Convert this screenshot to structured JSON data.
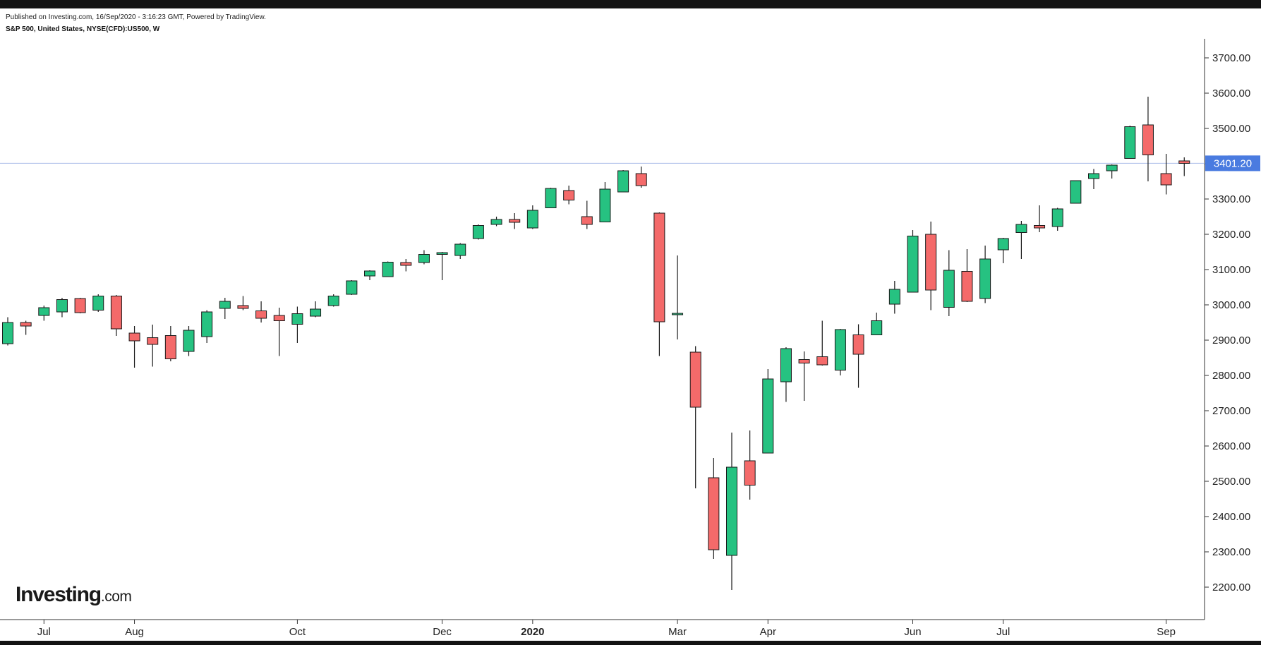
{
  "header": {
    "published": "Published on Investing.com, 16/Sep/2020 - 3:16:23 GMT, Powered by TradingView.",
    "symbol": "S&P 500, United States, NYSE(CFD):US500, W"
  },
  "logo": {
    "brand": "Investing",
    "domain": ".com"
  },
  "colors": {
    "up": "#26c281",
    "down": "#f46a6a",
    "outline": "#1a1a1a",
    "price_line": "#a9bce8",
    "price_label_bg": "#4a7be0",
    "axis": "#333333"
  },
  "chart_data": {
    "type": "candlestick",
    "title": "S&P 500, United States, NYSE(CFD):US500, W",
    "timeframe": "W",
    "ylim": [
      2120,
      3770
    ],
    "y_ticks": [
      2200,
      2300,
      2400,
      2500,
      2600,
      2700,
      2800,
      2900,
      3000,
      3100,
      3200,
      3300,
      3400,
      3500,
      3600,
      3700
    ],
    "y_tick_labels": [
      "2200.00",
      "2300.00",
      "2400.00",
      "2500.00",
      "2600.00",
      "2700.00",
      "2800.00",
      "2900.00",
      "3000.00",
      "3100.00",
      "3200.00",
      "3300.00",
      "3400.00",
      "3500.00",
      "3600.00",
      "3700.00"
    ],
    "x_ticks": [
      {
        "label": "Jul",
        "index": 2,
        "bold": false
      },
      {
        "label": "Aug",
        "index": 7,
        "bold": false
      },
      {
        "label": "Oct",
        "index": 16,
        "bold": false
      },
      {
        "label": "Dec",
        "index": 24,
        "bold": false
      },
      {
        "label": "2020",
        "index": 29,
        "bold": true
      },
      {
        "label": "Mar",
        "index": 37,
        "bold": false
      },
      {
        "label": "Apr",
        "index": 42,
        "bold": false
      },
      {
        "label": "Jun",
        "index": 50,
        "bold": false
      },
      {
        "label": "Jul",
        "index": 55,
        "bold": false
      },
      {
        "label": "Sep",
        "index": 64,
        "bold": false
      }
    ],
    "last_price": 3401.2,
    "last_price_label": "3401.20",
    "candles": [
      {
        "o": 2890,
        "h": 2965,
        "l": 2885,
        "c": 2950
      },
      {
        "o": 2950,
        "h": 2955,
        "l": 2915,
        "c": 2940
      },
      {
        "o": 2970,
        "h": 2998,
        "l": 2955,
        "c": 2992
      },
      {
        "o": 2980,
        "h": 3020,
        "l": 2965,
        "c": 3015
      },
      {
        "o": 3018,
        "h": 3020,
        "l": 2976,
        "c": 2978
      },
      {
        "o": 2985,
        "h": 3030,
        "l": 2980,
        "c": 3025
      },
      {
        "o": 3025,
        "h": 3028,
        "l": 2912,
        "c": 2932
      },
      {
        "o": 2920,
        "h": 2940,
        "l": 2822,
        "c": 2898
      },
      {
        "o": 2907,
        "h": 2944,
        "l": 2825,
        "c": 2888
      },
      {
        "o": 2913,
        "h": 2940,
        "l": 2840,
        "c": 2847
      },
      {
        "o": 2868,
        "h": 2940,
        "l": 2855,
        "c": 2928
      },
      {
        "o": 2910,
        "h": 2985,
        "l": 2892,
        "c": 2980
      },
      {
        "o": 2990,
        "h": 3020,
        "l": 2960,
        "c": 3010
      },
      {
        "o": 2998,
        "h": 3025,
        "l": 2985,
        "c": 2990
      },
      {
        "o": 2983,
        "h": 3010,
        "l": 2950,
        "c": 2962
      },
      {
        "o": 2970,
        "h": 2992,
        "l": 2855,
        "c": 2955
      },
      {
        "o": 2945,
        "h": 2995,
        "l": 2892,
        "c": 2975
      },
      {
        "o": 2968,
        "h": 3010,
        "l": 2965,
        "c": 2988
      },
      {
        "o": 2998,
        "h": 3030,
        "l": 2995,
        "c": 3025
      },
      {
        "o": 3030,
        "h": 3070,
        "l": 3028,
        "c": 3068
      },
      {
        "o": 3082,
        "h": 3098,
        "l": 3070,
        "c": 3096
      },
      {
        "o": 3080,
        "h": 3123,
        "l": 3080,
        "c": 3121
      },
      {
        "o": 3120,
        "h": 3130,
        "l": 3095,
        "c": 3112
      },
      {
        "o": 3120,
        "h": 3155,
        "l": 3115,
        "c": 3143
      },
      {
        "o": 3143,
        "h": 3150,
        "l": 3070,
        "c": 3148
      },
      {
        "o": 3140,
        "h": 3175,
        "l": 3130,
        "c": 3172
      },
      {
        "o": 3188,
        "h": 3228,
        "l": 3185,
        "c": 3225
      },
      {
        "o": 3228,
        "h": 3250,
        "l": 3223,
        "c": 3242
      },
      {
        "o": 3242,
        "h": 3260,
        "l": 3215,
        "c": 3234
      },
      {
        "o": 3218,
        "h": 3282,
        "l": 3215,
        "c": 3268
      },
      {
        "o": 3275,
        "h": 3332,
        "l": 3275,
        "c": 3330
      },
      {
        "o": 3324,
        "h": 3338,
        "l": 3285,
        "c": 3297
      },
      {
        "o": 3250,
        "h": 3295,
        "l": 3215,
        "c": 3228
      },
      {
        "o": 3235,
        "h": 3348,
        "l": 3235,
        "c": 3328
      },
      {
        "o": 3320,
        "h": 3382,
        "l": 3320,
        "c": 3380
      },
      {
        "o": 3372,
        "h": 3392,
        "l": 3332,
        "c": 3338
      },
      {
        "o": 3260,
        "h": 3262,
        "l": 2855,
        "c": 2952
      },
      {
        "o": 2972,
        "h": 3140,
        "l": 2902,
        "c": 2976
      },
      {
        "o": 2866,
        "h": 2883,
        "l": 2480,
        "c": 2710
      },
      {
        "o": 2510,
        "h": 2566,
        "l": 2280,
        "c": 2306
      },
      {
        "o": 2290,
        "h": 2638,
        "l": 2192,
        "c": 2540
      },
      {
        "o": 2558,
        "h": 2644,
        "l": 2448,
        "c": 2489
      },
      {
        "o": 2580,
        "h": 2818,
        "l": 2580,
        "c": 2790
      },
      {
        "o": 2782,
        "h": 2880,
        "l": 2725,
        "c": 2876
      },
      {
        "o": 2845,
        "h": 2868,
        "l": 2728,
        "c": 2835
      },
      {
        "o": 2853,
        "h": 2955,
        "l": 2828,
        "c": 2830
      },
      {
        "o": 2815,
        "h": 2932,
        "l": 2800,
        "c": 2930
      },
      {
        "o": 2915,
        "h": 2945,
        "l": 2765,
        "c": 2860
      },
      {
        "o": 2915,
        "h": 2978,
        "l": 2915,
        "c": 2955
      },
      {
        "o": 3002,
        "h": 3068,
        "l": 2975,
        "c": 3044
      },
      {
        "o": 3036,
        "h": 3212,
        "l": 3036,
        "c": 3195
      },
      {
        "o": 3200,
        "h": 3236,
        "l": 2985,
        "c": 3042
      },
      {
        "o": 2993,
        "h": 3155,
        "l": 2968,
        "c": 3098
      },
      {
        "o": 3095,
        "h": 3158,
        "l": 3008,
        "c": 3010
      },
      {
        "o": 3018,
        "h": 3168,
        "l": 3005,
        "c": 3130
      },
      {
        "o": 3156,
        "h": 3190,
        "l": 3118,
        "c": 3188
      },
      {
        "o": 3205,
        "h": 3238,
        "l": 3130,
        "c": 3228
      },
      {
        "o": 3225,
        "h": 3282,
        "l": 3206,
        "c": 3218
      },
      {
        "o": 3222,
        "h": 3275,
        "l": 3210,
        "c": 3272
      },
      {
        "o": 3288,
        "h": 3352,
        "l": 3288,
        "c": 3352
      },
      {
        "o": 3358,
        "h": 3385,
        "l": 3328,
        "c": 3372
      },
      {
        "o": 3380,
        "h": 3398,
        "l": 3358,
        "c": 3396
      },
      {
        "o": 3415,
        "h": 3508,
        "l": 3415,
        "c": 3505
      },
      {
        "o": 3510,
        "h": 3590,
        "l": 3350,
        "c": 3425
      },
      {
        "o": 3372,
        "h": 3428,
        "l": 3313,
        "c": 3340
      },
      {
        "o": 3408,
        "h": 3418,
        "l": 3365,
        "c": 3401
      }
    ]
  }
}
